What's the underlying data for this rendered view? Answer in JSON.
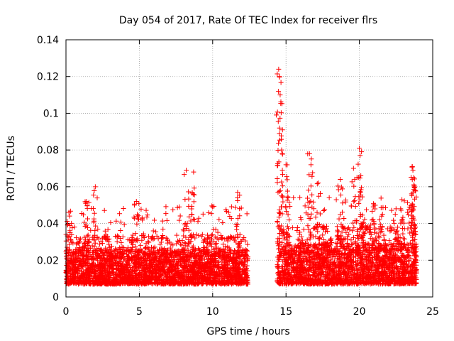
{
  "chart_data": {
    "type": "scatter",
    "title": "Day 054 of 2017, Rate Of TEC Index for receiver flrs",
    "xlabel": "GPS time / hours",
    "ylabel": "ROTI / TECUs",
    "xlim": [
      0,
      25
    ],
    "ylim": [
      0,
      0.14
    ],
    "x_ticks": [
      0,
      5,
      10,
      15,
      20,
      25
    ],
    "x_tick_labels": [
      "0",
      "5",
      "10",
      "15",
      "20",
      "25"
    ],
    "y_ticks": [
      0,
      0.02,
      0.04,
      0.06,
      0.08,
      0.1,
      0.12,
      0.14
    ],
    "y_tick_labels": [
      "0",
      "0.02",
      "0.04",
      "0.06",
      "0.08",
      "0.1",
      "0.12",
      "0.14"
    ],
    "grid": true,
    "marker": "+",
    "color": "#ff0000",
    "series": [
      {
        "name": "ROTI",
        "segments": [
          {
            "x_start": 0.0,
            "x_end": 12.4,
            "typical_low": 0.003,
            "typical_high": 0.03,
            "peak": 0.069
          },
          {
            "x_start": 14.4,
            "x_end": 23.9,
            "typical_low": 0.003,
            "typical_high": 0.035,
            "peak": 0.124
          }
        ],
        "peaks": [
          {
            "x": 0.2,
            "y": 0.046
          },
          {
            "x": 1.4,
            "y": 0.052
          },
          {
            "x": 2.0,
            "y": 0.06
          },
          {
            "x": 4.8,
            "y": 0.052
          },
          {
            "x": 8.2,
            "y": 0.069
          },
          {
            "x": 8.7,
            "y": 0.068
          },
          {
            "x": 11.7,
            "y": 0.057
          },
          {
            "x": 14.5,
            "y": 0.124
          },
          {
            "x": 14.55,
            "y": 0.12
          },
          {
            "x": 14.6,
            "y": 0.11
          },
          {
            "x": 14.55,
            "y": 0.089
          },
          {
            "x": 14.7,
            "y": 0.08
          },
          {
            "x": 15.0,
            "y": 0.072
          },
          {
            "x": 16.6,
            "y": 0.078
          },
          {
            "x": 16.7,
            "y": 0.072
          },
          {
            "x": 17.2,
            "y": 0.062
          },
          {
            "x": 18.7,
            "y": 0.064
          },
          {
            "x": 19.6,
            "y": 0.07
          },
          {
            "x": 20.0,
            "y": 0.081
          },
          {
            "x": 20.05,
            "y": 0.077
          },
          {
            "x": 20.1,
            "y": 0.066
          },
          {
            "x": 21.0,
            "y": 0.05
          },
          {
            "x": 22.5,
            "y": 0.048
          },
          {
            "x": 22.9,
            "y": 0.053
          },
          {
            "x": 23.6,
            "y": 0.071
          },
          {
            "x": 23.65,
            "y": 0.069
          },
          {
            "x": 23.7,
            "y": 0.065
          },
          {
            "x": 23.8,
            "y": 0.058
          }
        ]
      }
    ]
  }
}
